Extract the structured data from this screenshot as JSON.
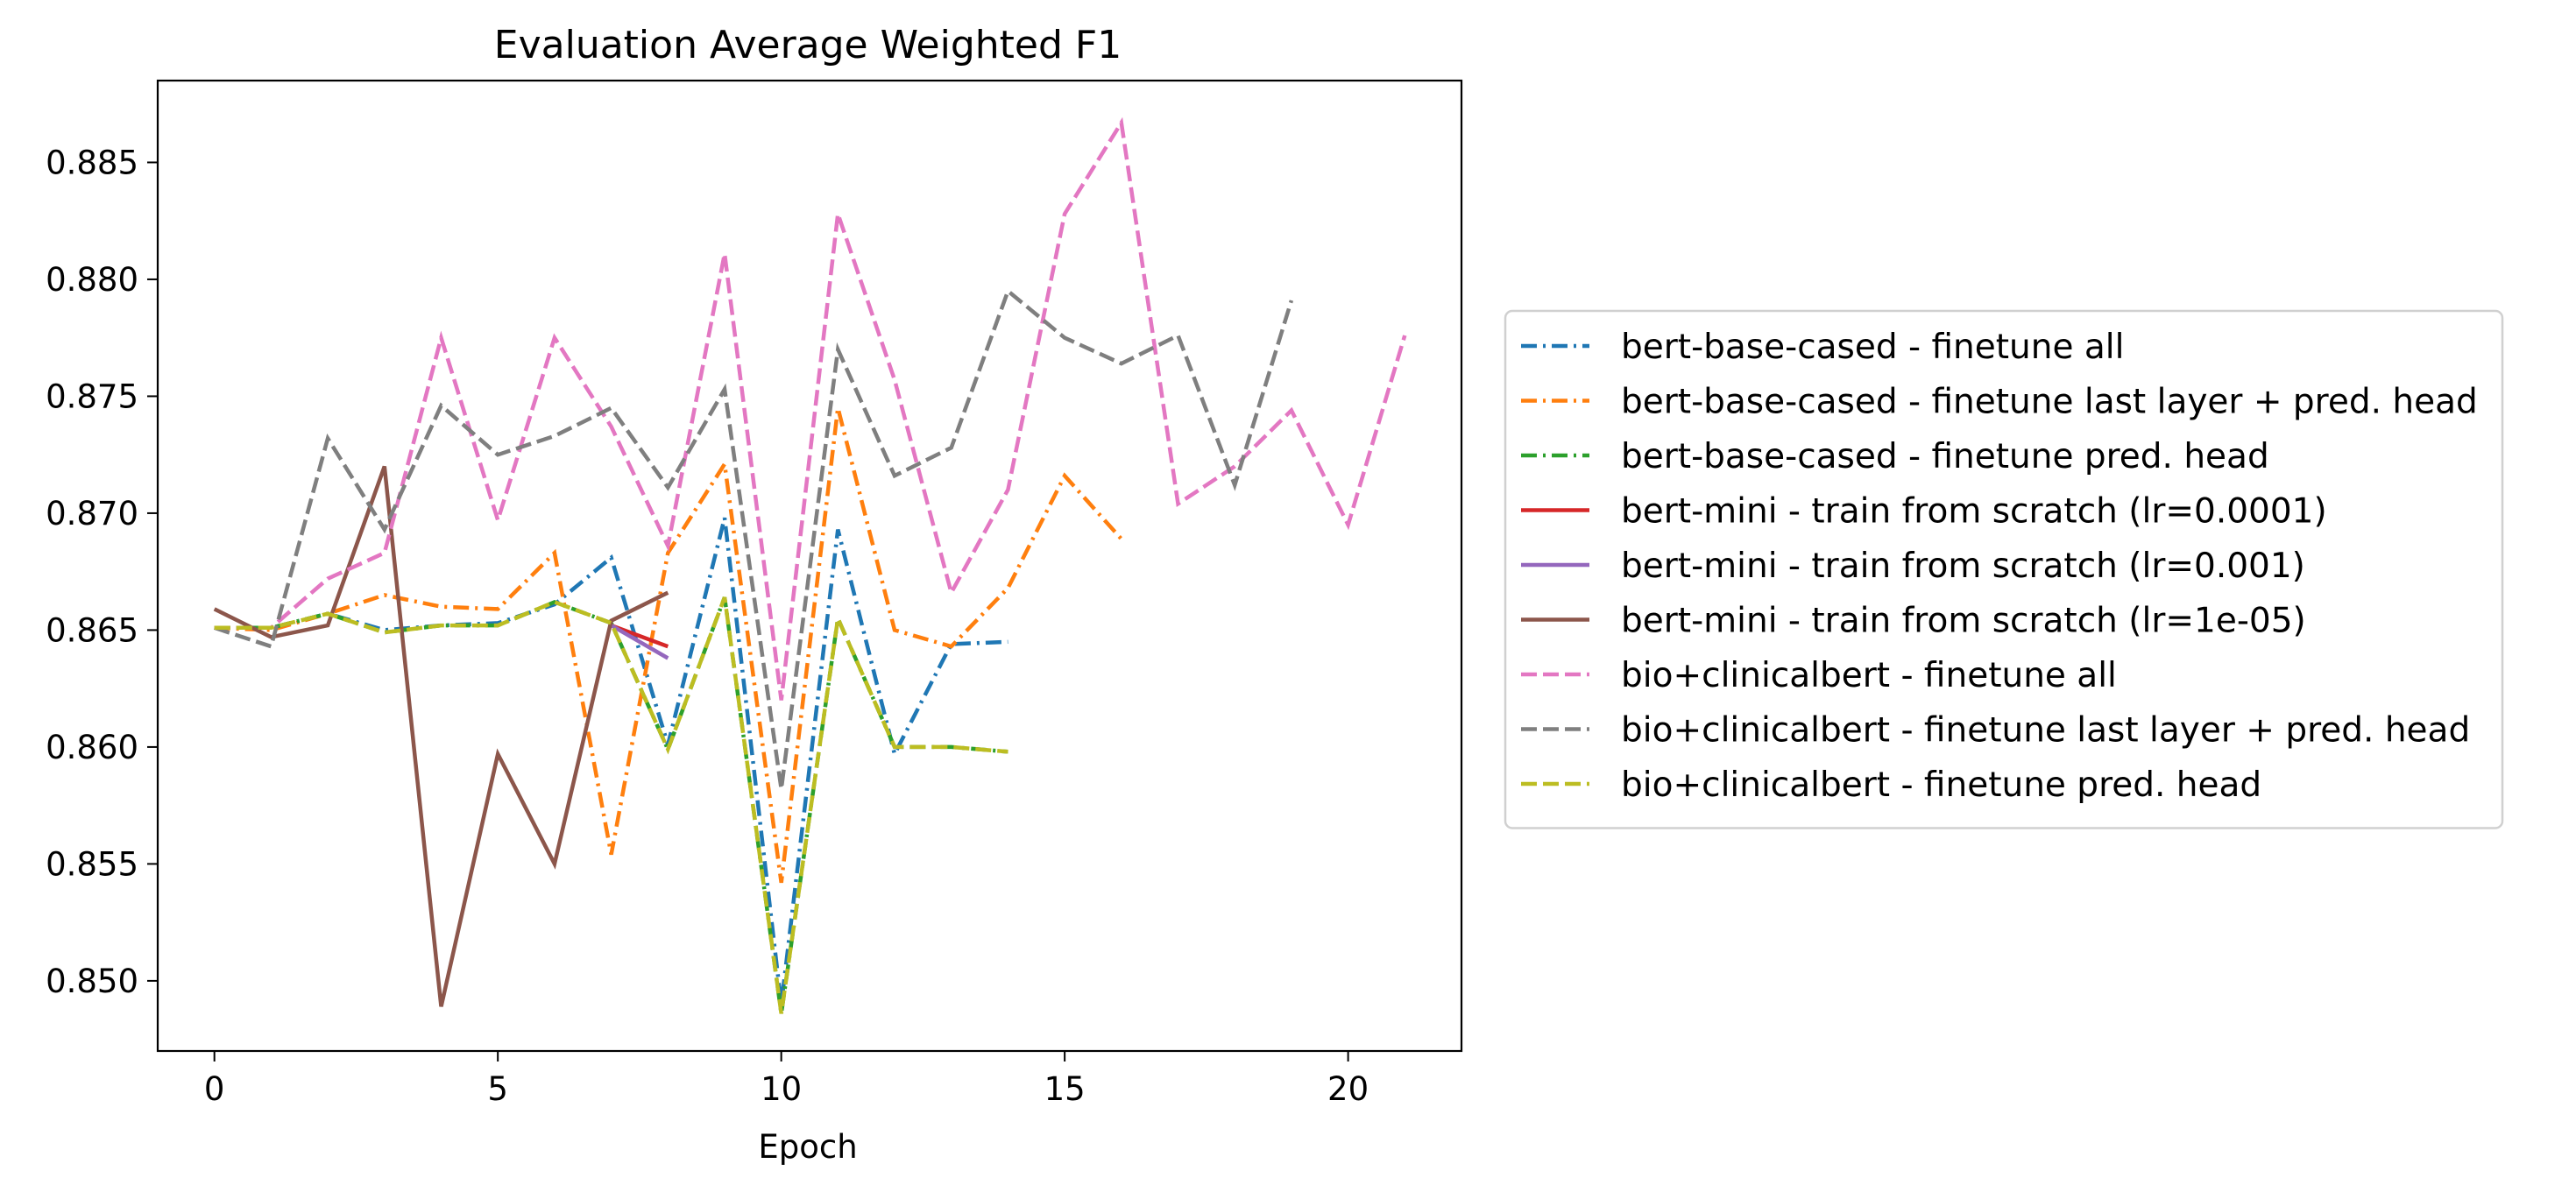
{
  "chart_data": {
    "type": "line",
    "title": "Evaluation Average Weighted F1",
    "xlabel": "Epoch",
    "ylabel": "",
    "xlim": [
      -1,
      22
    ],
    "ylim": [
      0.847,
      0.8885
    ],
    "xticks": [
      0,
      5,
      10,
      15,
      20
    ],
    "yticks": [
      0.85,
      0.855,
      0.86,
      0.865,
      0.87,
      0.875,
      0.88,
      0.885
    ],
    "xtick_labels": [
      "0",
      "5",
      "10",
      "15",
      "20"
    ],
    "ytick_labels": [
      "0.850",
      "0.855",
      "0.860",
      "0.865",
      "0.870",
      "0.875",
      "0.880",
      "0.885"
    ],
    "grid": false,
    "legend_position": "outside right",
    "series": [
      {
        "name": "bert-base-cased - finetune all",
        "color": "#1f77b4",
        "style": "dashdot",
        "x": [
          0,
          1,
          2,
          3,
          4,
          5,
          6,
          7,
          8,
          9,
          10,
          11,
          12,
          13,
          14
        ],
        "y": [
          0.8651,
          0.8651,
          0.8657,
          0.865,
          0.8652,
          0.8653,
          0.8661,
          0.8681,
          0.8601,
          0.8698,
          0.849,
          0.8693,
          0.8597,
          0.8644,
          0.8645
        ]
      },
      {
        "name": "bert-base-cased - finetune last layer + pred. head",
        "color": "#ff7f0e",
        "style": "dashdot",
        "x": [
          0,
          1,
          2,
          3,
          4,
          5,
          6,
          7,
          8,
          9,
          10,
          11,
          12,
          13,
          14,
          15,
          16
        ],
        "y": [
          0.8651,
          0.865,
          0.8657,
          0.8665,
          0.866,
          0.8659,
          0.8683,
          0.8554,
          0.8683,
          0.8721,
          0.8542,
          0.8745,
          0.865,
          0.8643,
          0.8668,
          0.8716,
          0.8689
        ]
      },
      {
        "name": "bert-base-cased - finetune pred. head",
        "color": "#2ca02c",
        "style": "dashdot",
        "x": [
          0,
          1,
          2,
          3,
          4,
          5,
          6,
          7,
          8,
          9,
          10,
          11,
          12,
          13,
          14
        ],
        "y": [
          0.8651,
          0.8651,
          0.8657,
          0.8649,
          0.8652,
          0.8652,
          0.8662,
          0.8653,
          0.8599,
          0.8664,
          0.8486,
          0.8655,
          0.86,
          0.86,
          0.8598
        ]
      },
      {
        "name": "bert-mini - train from scratch (lr=0.0001)",
        "color": "#d62728",
        "style": "solid",
        "x": [
          7,
          8
        ],
        "y": [
          0.8652,
          0.8643
        ]
      },
      {
        "name": "bert-mini - train from scratch (lr=0.001)",
        "color": "#9467bd",
        "style": "solid",
        "x": [
          7,
          8
        ],
        "y": [
          0.8652,
          0.8638
        ]
      },
      {
        "name": "bert-mini - train from scratch (lr=1e-05)",
        "color": "#8c564b",
        "style": "solid",
        "x": [
          0,
          1,
          2,
          3,
          4,
          5,
          6,
          7,
          8
        ],
        "y": [
          0.8659,
          0.8647,
          0.8652,
          0.872,
          0.8489,
          0.8597,
          0.855,
          0.8654,
          0.8666
        ]
      },
      {
        "name": "bio+clinicalbert - finetune all",
        "color": "#e377c2",
        "style": "dashed",
        "x": [
          0,
          1,
          2,
          3,
          4,
          5,
          6,
          7,
          8,
          9,
          10,
          11,
          12,
          13,
          14,
          15,
          16,
          17,
          18,
          19,
          20,
          21
        ],
        "y": [
          0.8651,
          0.8651,
          0.8672,
          0.8683,
          0.8775,
          0.8697,
          0.8775,
          0.8737,
          0.8686,
          0.8811,
          0.862,
          0.8828,
          0.8757,
          0.8666,
          0.871,
          0.8828,
          0.8867,
          0.8704,
          0.872,
          0.8744,
          0.8695,
          0.8776
        ]
      },
      {
        "name": "bio+clinicalbert - finetune last layer + pred. head",
        "color": "#7f7f7f",
        "style": "dashed",
        "x": [
          0,
          1,
          2,
          3,
          4,
          5,
          6,
          7,
          8,
          9,
          10,
          11,
          12,
          13,
          14,
          15,
          16,
          17,
          18,
          19
        ],
        "y": [
          0.8651,
          0.8643,
          0.8732,
          0.8693,
          0.8746,
          0.8725,
          0.8733,
          0.8745,
          0.8711,
          0.8753,
          0.8582,
          0.877,
          0.8716,
          0.8728,
          0.8795,
          0.8775,
          0.8764,
          0.8776,
          0.8712,
          0.8791
        ]
      },
      {
        "name": "bio+clinicalbert - finetune pred. head",
        "color": "#bcbd22",
        "style": "dashed",
        "x": [
          0,
          1,
          2,
          3,
          4,
          5,
          6,
          7,
          8,
          9,
          10,
          11,
          12,
          13,
          14
        ],
        "y": [
          0.8651,
          0.8651,
          0.8657,
          0.8649,
          0.8652,
          0.8652,
          0.8662,
          0.8653,
          0.8599,
          0.8664,
          0.8486,
          0.8655,
          0.86,
          0.86,
          0.8598
        ]
      }
    ]
  }
}
